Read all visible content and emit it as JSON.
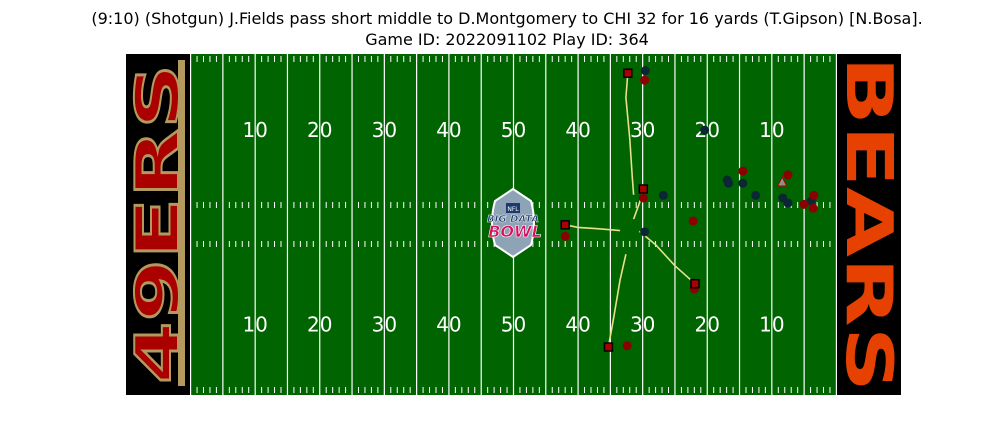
{
  "title": {
    "line1": "(9:10) (Shotgun) J.Fields pass short middle to D.Montgomery to CHI 32 for 16 yards (T.Gipson) [N.Bosa].",
    "line2": "Game ID: 2022091102 Play ID: 364"
  },
  "field": {
    "turf_color": "#006400",
    "top_numbers": [
      "10",
      "20",
      "30",
      "40",
      "50",
      "40",
      "30",
      "20",
      "10"
    ],
    "bottom_numbers": [
      "10",
      "20",
      "30",
      "40",
      "50",
      "40",
      "30",
      "20",
      "10"
    ],
    "left_endzone": {
      "text": "49ERS",
      "fill": "#aa0000",
      "stroke": "#b3995d",
      "background": "#000000"
    },
    "right_endzone": {
      "text": "BEARS",
      "fill": "#e64100",
      "background": "#000000"
    },
    "logo": {
      "top": "NFL",
      "line1": "BIG DATA",
      "line2": "BOWL"
    }
  },
  "chart_data": {
    "type": "scatter",
    "title": "(9:10) (Shotgun) J.Fields pass short middle to D.Montgomery to CHI 32 for 16 yards (T.Gipson) [N.Bosa].",
    "xlim": [
      0,
      120
    ],
    "ylim": [
      0,
      53.3
    ],
    "grid": false,
    "legend": "none",
    "series": [
      {
        "color": "#0b2733",
        "marker": "circle",
        "points": [
          [
            80.4,
            50.7
          ],
          [
            80.3,
            25.5
          ],
          [
            83.2,
            31.2
          ],
          [
            89.6,
            41.4
          ],
          [
            97.5,
            31.2
          ],
          [
            95.5,
            33.1
          ],
          [
            93.1,
            33.6
          ],
          [
            93.3,
            33.1
          ],
          [
            101.7,
            30.8
          ],
          [
            102.5,
            30.0
          ],
          [
            106.1,
            30.3
          ]
        ]
      },
      {
        "color": "#8b0000",
        "marker": "circle",
        "points": [
          [
            80.3,
            49.2
          ],
          [
            80.1,
            30.8
          ],
          [
            87.8,
            27.2
          ],
          [
            102.5,
            34.4
          ],
          [
            88.0,
            16.6
          ],
          [
            106.5,
            31.2
          ],
          [
            105.0,
            29.8
          ],
          [
            106.4,
            29.2
          ],
          [
            77.6,
            7.7
          ],
          [
            68.0,
            24.8
          ],
          [
            95.5,
            35.0
          ]
        ]
      },
      {
        "color": "#aa0000",
        "marker": "square",
        "points": [
          [
            77.7,
            50.3
          ],
          [
            80.1,
            32.2
          ],
          [
            68.0,
            26.6
          ],
          [
            88.1,
            17.4
          ],
          [
            74.7,
            7.5
          ]
        ]
      },
      {
        "color": "#9b8b88",
        "marker": "triangle",
        "points": [
          [
            101.6,
            33.3
          ]
        ]
      }
    ],
    "routes": [
      {
        "color": "#e8e08a",
        "points": [
          [
            77.7,
            50.3
          ],
          [
            77.4,
            46.5
          ],
          [
            78.0,
            40.0
          ],
          [
            78.4,
            34.0
          ],
          [
            78.6,
            31.3
          ]
        ]
      },
      {
        "color": "#e8e08a",
        "points": [
          [
            80.1,
            32.2
          ],
          [
            79.5,
            30.0
          ],
          [
            78.6,
            27.5
          ]
        ]
      },
      {
        "color": "#e8e08a",
        "points": [
          [
            68.0,
            26.6
          ],
          [
            70.0,
            26.2
          ],
          [
            73.0,
            26.0
          ],
          [
            76.5,
            25.7
          ]
        ]
      },
      {
        "color": "#e8e08a",
        "points": [
          [
            88.1,
            17.4
          ],
          [
            85.0,
            20.2
          ],
          [
            82.0,
            23.5
          ],
          [
            79.5,
            25.6
          ]
        ]
      },
      {
        "color": "#e8e08a",
        "points": [
          [
            74.7,
            7.5
          ],
          [
            75.5,
            12.0
          ],
          [
            76.5,
            18.0
          ],
          [
            77.4,
            22.0
          ]
        ]
      }
    ]
  }
}
